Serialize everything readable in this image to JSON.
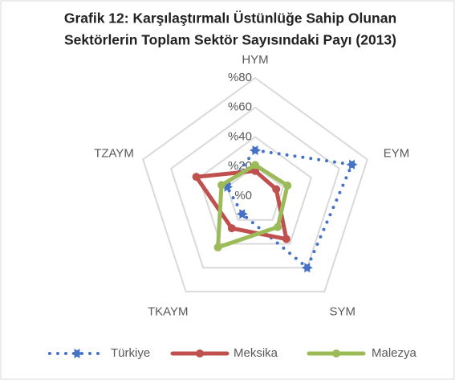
{
  "chart_data": {
    "type": "radar",
    "title": [
      "Grafik 12: Karşılaştırmalı Üstünlüğe Sahip Olunan",
      "Sektörlerin Toplam Sektör Sayısındaki Payı (2013)"
    ],
    "categories": [
      "HYM",
      "EYM",
      "SYM",
      "TKAYM",
      "TZAYM"
    ],
    "rlim": [
      0,
      80
    ],
    "rticks": [
      {
        "value": 0,
        "label": "%0"
      },
      {
        "value": 20,
        "label": "%20"
      },
      {
        "value": 40,
        "label": "%40"
      },
      {
        "value": 60,
        "label": "%60"
      },
      {
        "value": 80,
        "label": "%80"
      }
    ],
    "grid": true,
    "legend": "bottom",
    "series": [
      {
        "name": "Türkiye",
        "color": "#4472c4",
        "style": "dotted",
        "values": [
          31,
          69,
          60,
          15,
          20
        ]
      },
      {
        "name": "Meksika",
        "color": "#c0504d",
        "style": "solid",
        "values": [
          17,
          15,
          36,
          27,
          42
        ]
      },
      {
        "name": "Malezya",
        "color": "#9bbb59",
        "style": "solid",
        "values": [
          21,
          23,
          26,
          43,
          24
        ]
      }
    ]
  }
}
